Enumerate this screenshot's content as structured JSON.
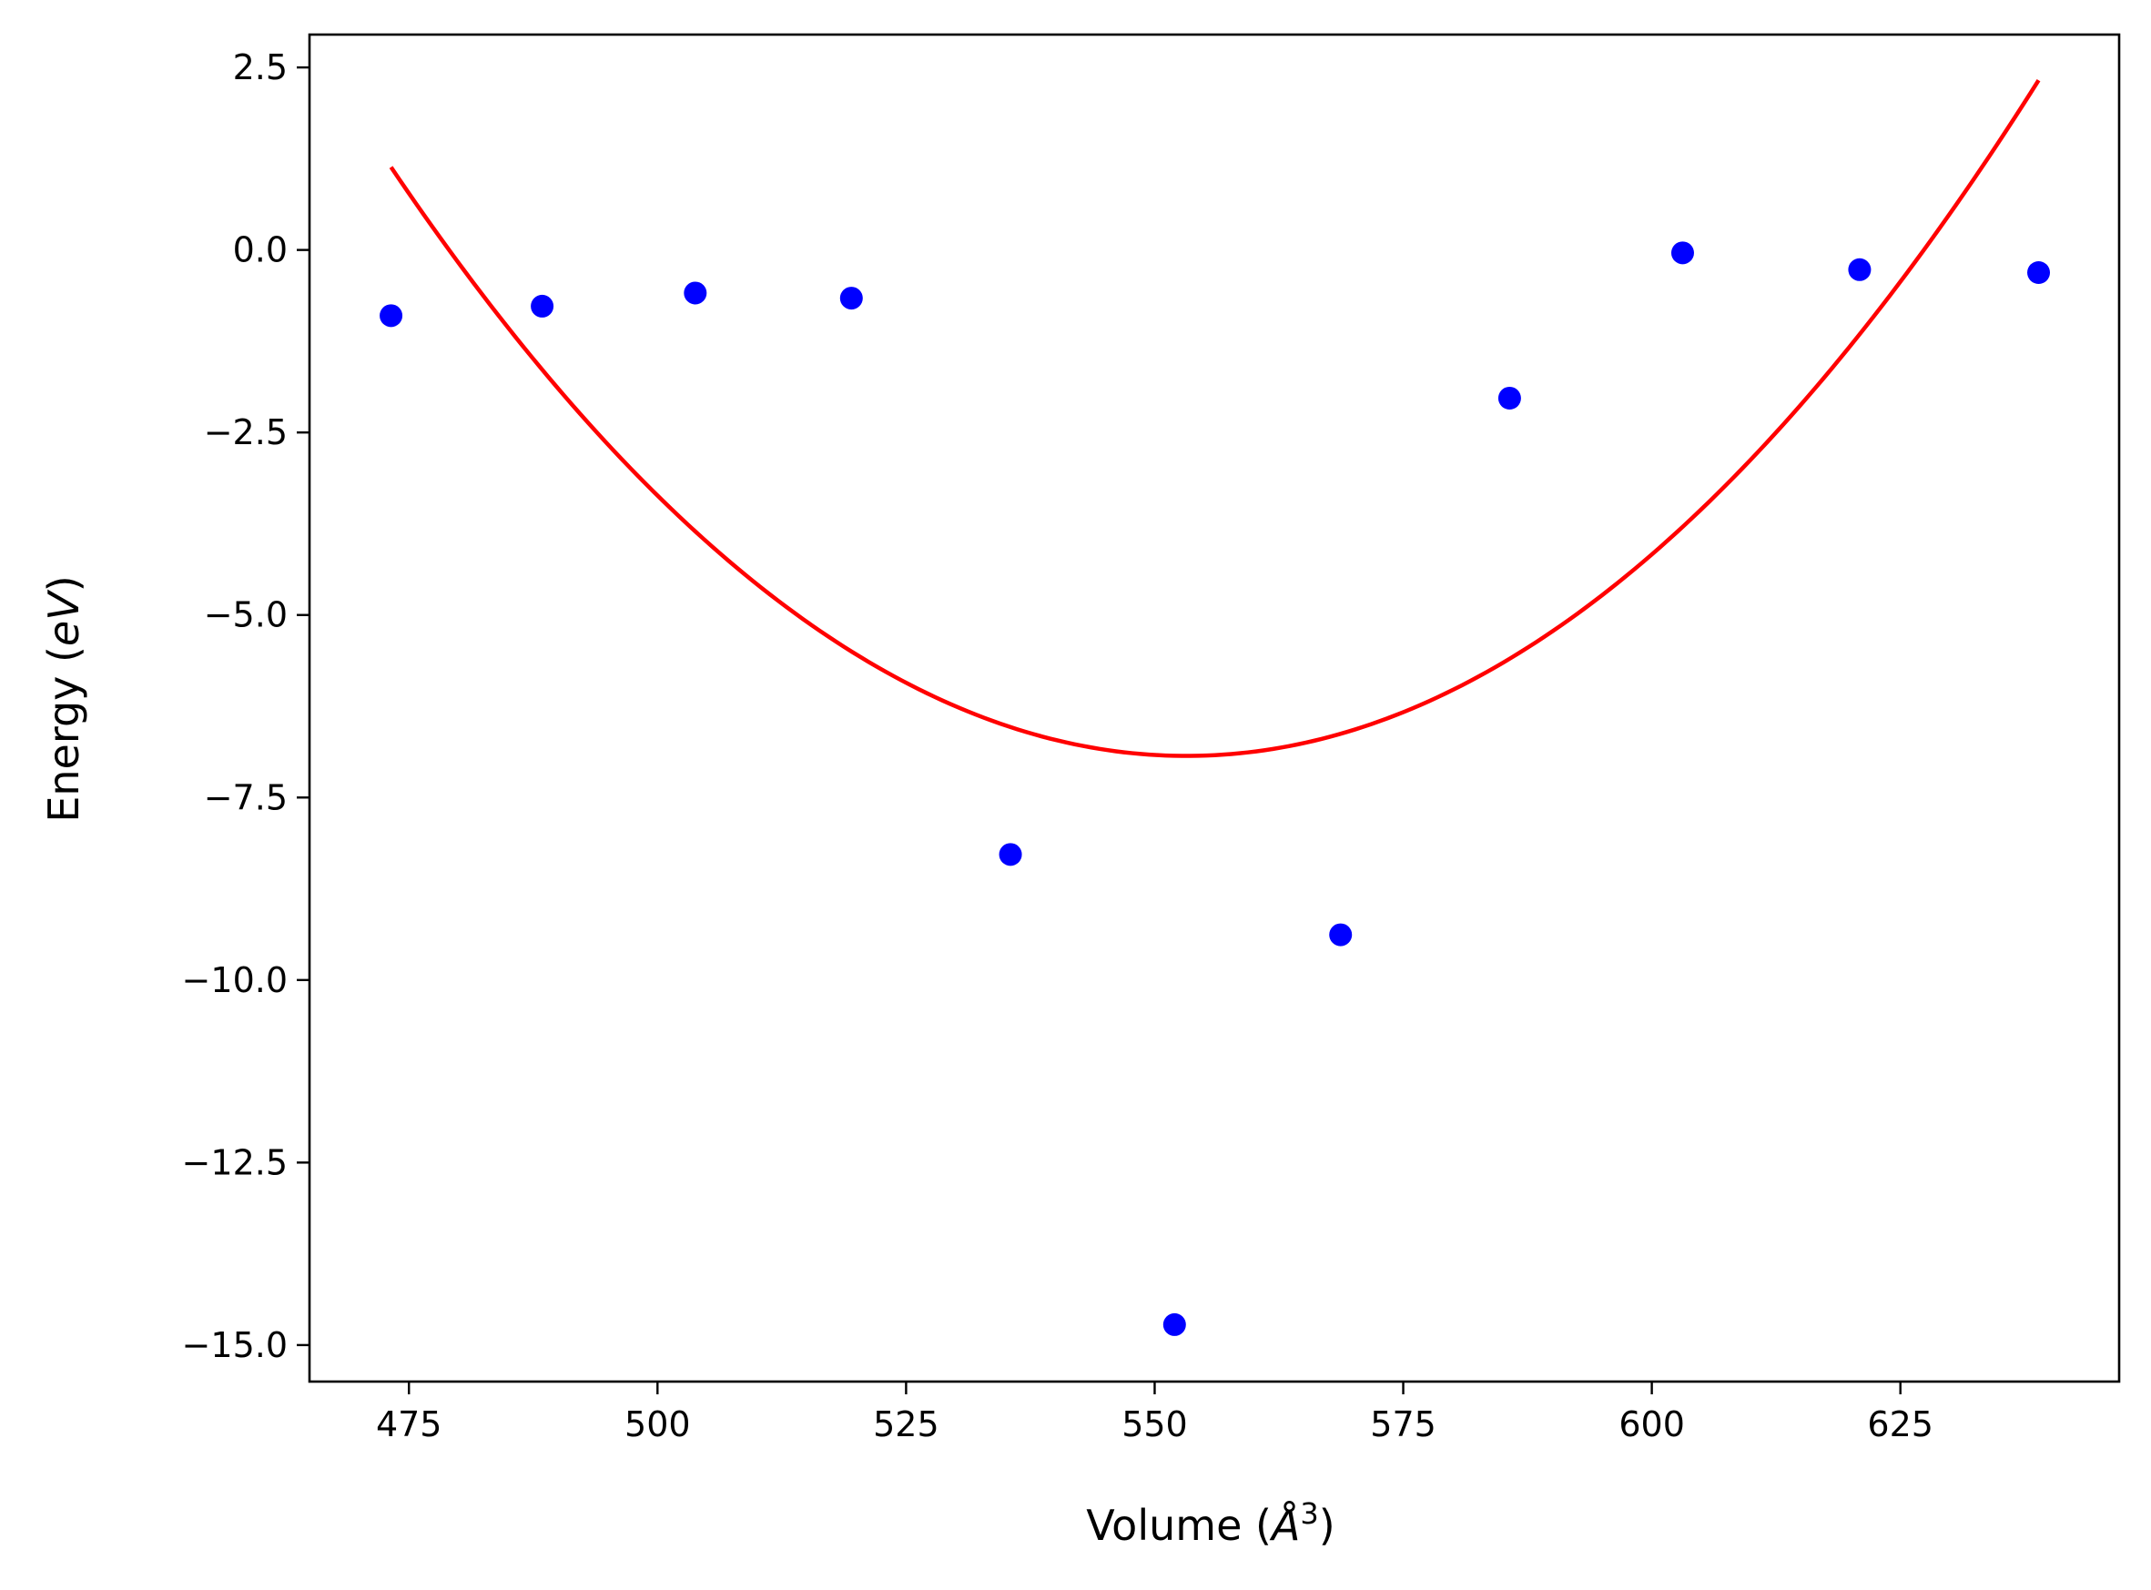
{
  "chart_data": {
    "type": "scatter",
    "title": "",
    "xlabel": {
      "prefix": "Volume (",
      "unit": "Å",
      "superscript": "3",
      "suffix": ")"
    },
    "ylabel": {
      "prefix": "Energy (",
      "unit": "eV",
      "suffix": ")"
    },
    "xlim": [
      465,
      647
    ],
    "ylim": [
      -15.5,
      2.95
    ],
    "xticks": [
      475,
      500,
      525,
      550,
      575,
      600,
      625
    ],
    "xtick_labels": [
      "475",
      "500",
      "525",
      "550",
      "575",
      "600",
      "625"
    ],
    "yticks": [
      2.5,
      0.0,
      -2.5,
      -5.0,
      -7.5,
      -10.0,
      -12.5,
      -15.0
    ],
    "ytick_labels": [
      "2.5",
      "0.0",
      "−2.5",
      "−5.0",
      "−7.5",
      "−10.0",
      "−12.5",
      "−15.0"
    ],
    "grid": false,
    "legend": "none",
    "series": [
      {
        "kind": "scatter",
        "color": "#0000ff",
        "points": [
          {
            "x": 473.2,
            "y": -0.9
          },
          {
            "x": 488.4,
            "y": -0.77
          },
          {
            "x": 503.8,
            "y": -0.59
          },
          {
            "x": 519.5,
            "y": -0.66
          },
          {
            "x": 535.5,
            "y": -8.28
          },
          {
            "x": 552.0,
            "y": -14.72
          },
          {
            "x": 568.7,
            "y": -9.38
          },
          {
            "x": 585.7,
            "y": -2.03
          },
          {
            "x": 603.1,
            "y": -0.04
          },
          {
            "x": 620.9,
            "y": -0.27
          },
          {
            "x": 638.9,
            "y": -0.31
          }
        ]
      },
      {
        "kind": "line",
        "color": "#ff0000",
        "fit": {
          "form": "quadratic",
          "vertex_x": 553.2,
          "vertex_y": -6.93,
          "x_range": [
            473.2,
            638.9
          ]
        }
      }
    ]
  }
}
